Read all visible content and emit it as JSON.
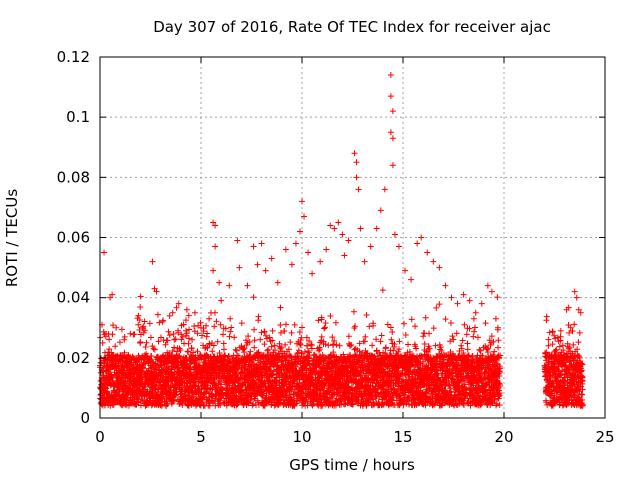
{
  "chart_data": {
    "type": "scatter",
    "title": "Day 307 of 2016, Rate Of TEC Index for receiver ajac",
    "xlabel": "GPS time / hours",
    "ylabel": "ROTI / TECUs",
    "xlim": [
      0,
      25
    ],
    "ylim": [
      0,
      0.12
    ],
    "x_ticks": [
      0,
      5,
      10,
      15,
      20,
      25
    ],
    "x_tick_labels": [
      "0",
      "5",
      "10",
      "15",
      "20",
      "25"
    ],
    "y_ticks": [
      0,
      0.02,
      0.04,
      0.06,
      0.08,
      0.1,
      0.12
    ],
    "y_tick_labels": [
      "0",
      "0.02",
      "0.04",
      "0.06",
      "0.08",
      "0.1",
      "0.12"
    ],
    "grid": true,
    "marker": "+",
    "color": "#ff0000",
    "data_gap_hours": [
      19.8,
      22.0
    ],
    "series": [
      {
        "name": "ROTI",
        "points": [
          [
            0.2,
            0.055
          ],
          [
            0.1,
            0.031
          ],
          [
            0.5,
            0.04
          ],
          [
            0.6,
            0.041
          ],
          [
            0.3,
            0.028
          ],
          [
            0.8,
            0.03
          ],
          [
            1.2,
            0.026
          ],
          [
            1.5,
            0.028
          ],
          [
            1.9,
            0.034
          ],
          [
            2.3,
            0.025
          ],
          [
            2.6,
            0.052
          ],
          [
            2.7,
            0.043
          ],
          [
            2.8,
            0.042
          ],
          [
            3.1,
            0.032
          ],
          [
            3.6,
            0.035
          ],
          [
            3.9,
            0.038
          ],
          [
            4.3,
            0.036
          ],
          [
            4.7,
            0.035
          ],
          [
            5.0,
            0.03
          ],
          [
            5.4,
            0.033
          ],
          [
            5.6,
            0.065
          ],
          [
            5.7,
            0.064
          ],
          [
            5.7,
            0.057
          ],
          [
            5.6,
            0.049
          ],
          [
            5.9,
            0.045
          ],
          [
            6.0,
            0.039
          ],
          [
            6.4,
            0.044
          ],
          [
            6.8,
            0.059
          ],
          [
            6.9,
            0.05
          ],
          [
            7.3,
            0.044
          ],
          [
            7.6,
            0.057
          ],
          [
            7.8,
            0.051
          ],
          [
            8.0,
            0.058
          ],
          [
            8.2,
            0.049
          ],
          [
            8.5,
            0.053
          ],
          [
            8.8,
            0.045
          ],
          [
            9.2,
            0.056
          ],
          [
            9.5,
            0.051
          ],
          [
            9.7,
            0.058
          ],
          [
            9.9,
            0.062
          ],
          [
            10.0,
            0.072
          ],
          [
            10.1,
            0.067
          ],
          [
            10.3,
            0.055
          ],
          [
            10.5,
            0.048
          ],
          [
            10.9,
            0.052
          ],
          [
            11.2,
            0.056
          ],
          [
            11.4,
            0.064
          ],
          [
            11.6,
            0.063
          ],
          [
            11.8,
            0.065
          ],
          [
            12.0,
            0.061
          ],
          [
            12.1,
            0.054
          ],
          [
            12.3,
            0.059
          ],
          [
            12.6,
            0.088
          ],
          [
            12.7,
            0.085
          ],
          [
            12.7,
            0.08
          ],
          [
            12.8,
            0.076
          ],
          [
            12.9,
            0.063
          ],
          [
            13.1,
            0.052
          ],
          [
            13.4,
            0.057
          ],
          [
            13.7,
            0.063
          ],
          [
            13.9,
            0.069
          ],
          [
            14.1,
            0.076
          ],
          [
            14.4,
            0.114
          ],
          [
            14.4,
            0.107
          ],
          [
            14.5,
            0.102
          ],
          [
            14.4,
            0.095
          ],
          [
            14.5,
            0.093
          ],
          [
            14.5,
            0.084
          ],
          [
            14.6,
            0.061
          ],
          [
            14.8,
            0.057
          ],
          [
            15.1,
            0.049
          ],
          [
            15.4,
            0.046
          ],
          [
            15.7,
            0.058
          ],
          [
            15.9,
            0.06
          ],
          [
            16.2,
            0.055
          ],
          [
            16.5,
            0.052
          ],
          [
            16.8,
            0.05
          ],
          [
            17.1,
            0.044
          ],
          [
            17.4,
            0.04
          ],
          [
            17.7,
            0.038
          ],
          [
            18.0,
            0.041
          ],
          [
            18.3,
            0.039
          ],
          [
            18.6,
            0.035
          ],
          [
            18.9,
            0.038
          ],
          [
            19.2,
            0.044
          ],
          [
            19.4,
            0.042
          ],
          [
            19.6,
            0.033
          ],
          [
            19.7,
            0.03
          ],
          [
            22.2,
            0.024
          ],
          [
            22.5,
            0.022
          ],
          [
            22.8,
            0.027
          ],
          [
            23.1,
            0.036
          ],
          [
            23.3,
            0.03
          ],
          [
            23.5,
            0.042
          ],
          [
            23.6,
            0.04
          ],
          [
            23.7,
            0.036
          ],
          [
            23.8,
            0.035
          ]
        ]
      }
    ]
  }
}
